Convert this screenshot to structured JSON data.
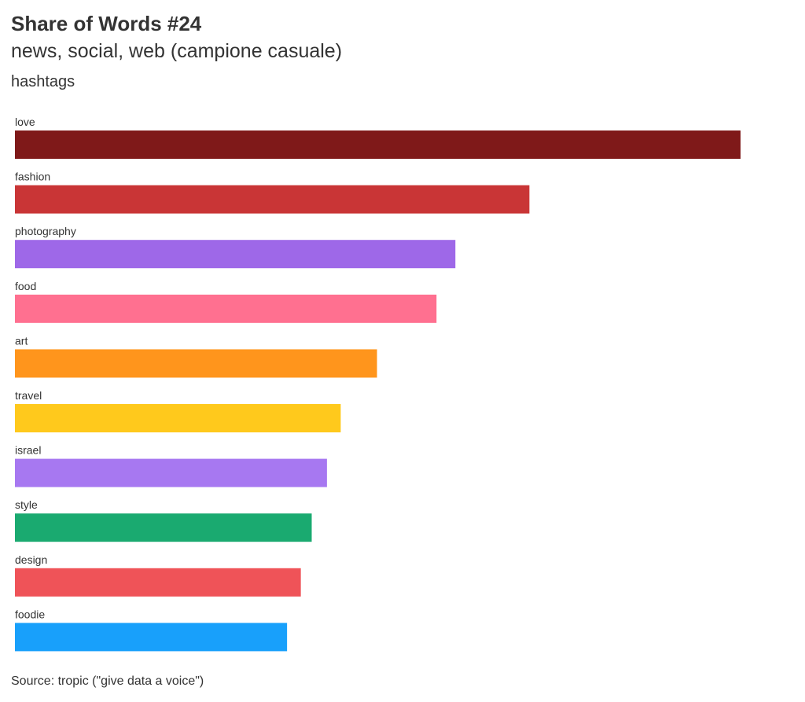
{
  "title": "Share of Words #24",
  "subtitle": "news, social, web (campione casuale)",
  "group_label": "hashtags",
  "source": "Source: tropic (\"give data a voice\")",
  "chart_data": {
    "type": "bar",
    "orientation": "horizontal",
    "categories": [
      "love",
      "fashion",
      "photography",
      "food",
      "art",
      "travel",
      "israel",
      "style",
      "design",
      "foodie"
    ],
    "values": [
      100,
      70.9,
      60.7,
      58.1,
      49.9,
      44.9,
      43.0,
      40.9,
      39.4,
      37.5
    ],
    "colors": [
      "#7f1919",
      "#c93536",
      "#9e68e8",
      "#ff7090",
      "#ff951c",
      "#ffc91c",
      "#a778f1",
      "#1aaa70",
      "#ef5358",
      "#18a0fb"
    ],
    "xlim": [
      0,
      100
    ],
    "grid": false,
    "legend": "none"
  }
}
